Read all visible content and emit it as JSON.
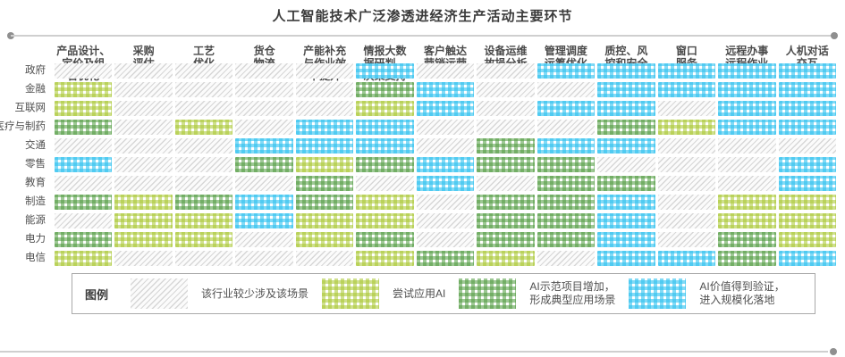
{
  "title": "人工智能技术广泛渗透进经济生产活动主要环节",
  "legend": {
    "title": "图例",
    "items": [
      {
        "category": "none",
        "label": "该行业较少涉及该场景"
      },
      {
        "category": "trial",
        "label": "尝试应用AI"
      },
      {
        "category": "demo",
        "label": "AI示范项目增加，\n形成典型应用场景"
      },
      {
        "category": "scale",
        "label": "AI价值得到验证，\n进入规模化落地"
      }
    ]
  },
  "colors": {
    "trial_green": "#a8c630",
    "demo_green": "#4f9a3e",
    "scale_blue": "#2fc1ef",
    "none_hatch_gray": "#d7d7d7",
    "title_text": "#3b3b3b"
  },
  "chart_data": {
    "type": "heatmap",
    "title": "人工智能技术广泛渗透进经济生产活动主要环节",
    "columns": [
      "产品设计、定价及组合优化",
      "采购评估",
      "工艺优化",
      "货仓物流",
      "产能补充与作业效率提升",
      "情报大数据研判、决策支持",
      "客户触达营销运营",
      "设备运维故损分析",
      "管理调度运筹优化",
      "质控、风控和安全",
      "窗口服务",
      "远程办事远程作业",
      "人机对话交互"
    ],
    "column_display": [
      "产品设计、\n定价及组\n合优化",
      "采购\n评估",
      "工艺\n优化",
      "货仓\n物流",
      "产能补充\n与作业效\n率提升",
      "情报大数\n据研判、\n决策支持",
      "客户触达\n营销运营",
      "设备运维\n故损分析",
      "管理调度\n运筹优化",
      "质控、风\n控和安全",
      "窗口\n服务",
      "远程办事\n远程作业",
      "人机对话\n交互"
    ],
    "rows": [
      "政府",
      "金融",
      "互联网",
      "医疗与制药",
      "交通",
      "零售",
      "教育",
      "制造",
      "能源",
      "电力",
      "电信"
    ],
    "categories": [
      "该行业较少涉及该场景",
      "尝试应用AI",
      "AI示范项目增加，形成典型应用场景",
      "AI价值得到验证，进入规模化落地"
    ],
    "legend_position": "bottom",
    "values": [
      [
        0,
        0,
        0,
        0,
        0,
        3,
        0,
        0,
        3,
        3,
        3,
        3,
        3
      ],
      [
        1,
        0,
        0,
        0,
        0,
        2,
        3,
        0,
        0,
        3,
        3,
        3,
        3
      ],
      [
        1,
        0,
        0,
        0,
        0,
        1,
        3,
        0,
        3,
        3,
        0,
        3,
        3
      ],
      [
        2,
        0,
        1,
        0,
        3,
        3,
        0,
        0,
        0,
        2,
        1,
        3,
        3
      ],
      [
        0,
        0,
        0,
        3,
        3,
        3,
        0,
        2,
        3,
        3,
        0,
        0,
        0
      ],
      [
        3,
        0,
        0,
        2,
        1,
        2,
        3,
        2,
        2,
        0,
        0,
        0,
        3
      ],
      [
        0,
        0,
        0,
        0,
        2,
        0,
        3,
        0,
        2,
        2,
        0,
        0,
        3
      ],
      [
        2,
        1,
        2,
        3,
        2,
        1,
        0,
        2,
        2,
        3,
        0,
        1,
        1
      ],
      [
        0,
        1,
        1,
        3,
        1,
        1,
        0,
        2,
        2,
        3,
        0,
        1,
        1
      ],
      [
        2,
        1,
        1,
        0,
        1,
        2,
        0,
        2,
        2,
        3,
        0,
        2,
        1
      ],
      [
        1,
        0,
        0,
        0,
        0,
        1,
        2,
        1,
        0,
        3,
        3,
        2,
        3
      ]
    ]
  }
}
